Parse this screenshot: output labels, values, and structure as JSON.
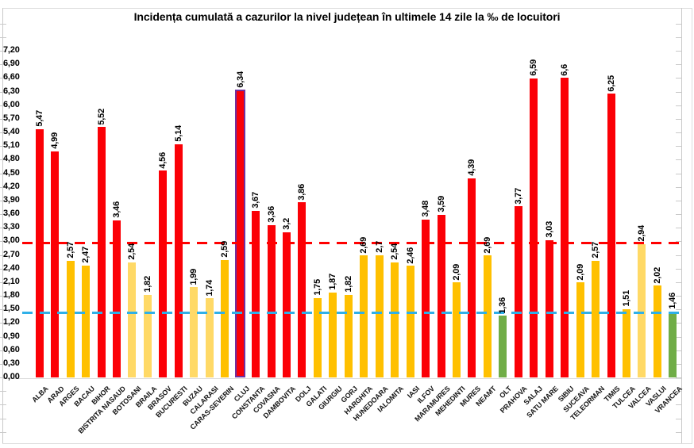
{
  "title": "Incidența cumulată a cazurilor la nivel județean în ultimele 14 zile la ‰ de locuitori",
  "chart_data": {
    "type": "bar",
    "title": "Incidența cumulată a cazurilor la nivel județean în ultimele 14 zile la ‰ de locuitori",
    "xlabel": "",
    "ylabel": "",
    "ylim": [
      0,
      7.2
    ],
    "y_tick_step": 0.3,
    "y_tick_labels": [
      "7,20",
      "6,90",
      "6,60",
      "6,30",
      "6,00",
      "5,70",
      "5,40",
      "5,10",
      "4,80",
      "4,50",
      "4,20",
      "3,90",
      "3,60",
      "3,30",
      "3,00",
      "2,70",
      "2,40",
      "2,10",
      "1,80",
      "1,50",
      "1,20",
      "0,90",
      "0,60",
      "0,30",
      "0,00"
    ],
    "decimal_separator": ",",
    "grid": false,
    "legend": "none",
    "categories": [
      "ALBA",
      "ARAD",
      "ARGES",
      "BACAU",
      "BIHOR",
      "BISTRITA NASAUD",
      "BOTOSANI",
      "BRAILA",
      "BRASOV",
      "BUCURESTI",
      "BUZAU",
      "CALARASI",
      "CARAS-SEVERIN",
      "CLUJ",
      "CONSTANTA",
      "COVASNA",
      "DAMBOVITA",
      "DOLJ",
      "GALATI",
      "GIURGIU",
      "GORJ",
      "HARGHITA",
      "HUNEDOARA",
      "IALOMITA",
      "IASI",
      "ILFOV",
      "MARAMURES",
      "MEHEDINTI",
      "MURES",
      "NEAMT",
      "OLT",
      "PRAHOVA",
      "SALAJ",
      "SATU MARE",
      "SIBIU",
      "SUCEAVA",
      "TELEORMAN",
      "TIMIS",
      "TULCEA",
      "VALCEA",
      "VASLUI",
      "VRANCEA"
    ],
    "values": [
      5.47,
      4.99,
      2.57,
      2.47,
      5.52,
      3.46,
      2.54,
      1.82,
      4.56,
      5.14,
      1.99,
      1.74,
      2.59,
      6.34,
      3.67,
      3.36,
      3.2,
      3.86,
      1.75,
      1.87,
      1.82,
      2.69,
      2.7,
      2.54,
      2.46,
      3.48,
      3.59,
      2.09,
      4.39,
      2.69,
      1.36,
      3.77,
      6.59,
      3.03,
      6.6,
      2.09,
      2.57,
      6.25,
      1.51,
      2.94,
      2.02,
      1.46
    ],
    "value_labels": [
      "5,47",
      "4,99",
      "2,57",
      "2,47",
      "5,52",
      "3,46",
      "2,54",
      "1,82",
      "4,56",
      "5,14",
      "1,99",
      "1,74",
      "2,59",
      "6,34",
      "3,67",
      "3,36",
      "3,2",
      "3,86",
      "1,75",
      "1,87",
      "1,82",
      "2,69",
      "2,7",
      "2,54",
      "2,46",
      "3,48",
      "3,59",
      "2,09",
      "4,39",
      "2,69",
      "1,36",
      "3,77",
      "6,59",
      "3,03",
      "6,6",
      "2,09",
      "2,57",
      "6,25",
      "1,51",
      "2,94",
      "2,02",
      "1,46"
    ],
    "bar_colors": [
      "red",
      "red",
      "amber",
      "amber",
      "red",
      "red",
      "light_yellow",
      "light_yellow",
      "red",
      "red",
      "light_yellow",
      "light_yellow",
      "amber",
      "red",
      "red",
      "red",
      "red",
      "red",
      "amber",
      "amber",
      "amber",
      "amber",
      "amber",
      "amber",
      "amber",
      "red",
      "red",
      "amber",
      "red",
      "amber",
      "green",
      "red",
      "red",
      "red",
      "red",
      "amber",
      "amber",
      "red",
      "amber",
      "light_yellow",
      "amber",
      "green"
    ],
    "palette": {
      "red": "#FB0006",
      "amber": "#FFC000",
      "light_yellow": "#FFD966",
      "green": "#70AD47"
    },
    "highlight": {
      "category": "CLUJ",
      "border_color": "#7030A0"
    },
    "reference_lines": [
      {
        "name": "red-threshold",
        "value": 2.97,
        "color": "#FF0000",
        "style": "dashed"
      },
      {
        "name": "blue-threshold",
        "value": 1.43,
        "color": "#2FB0E8",
        "style": "dashed"
      }
    ]
  }
}
